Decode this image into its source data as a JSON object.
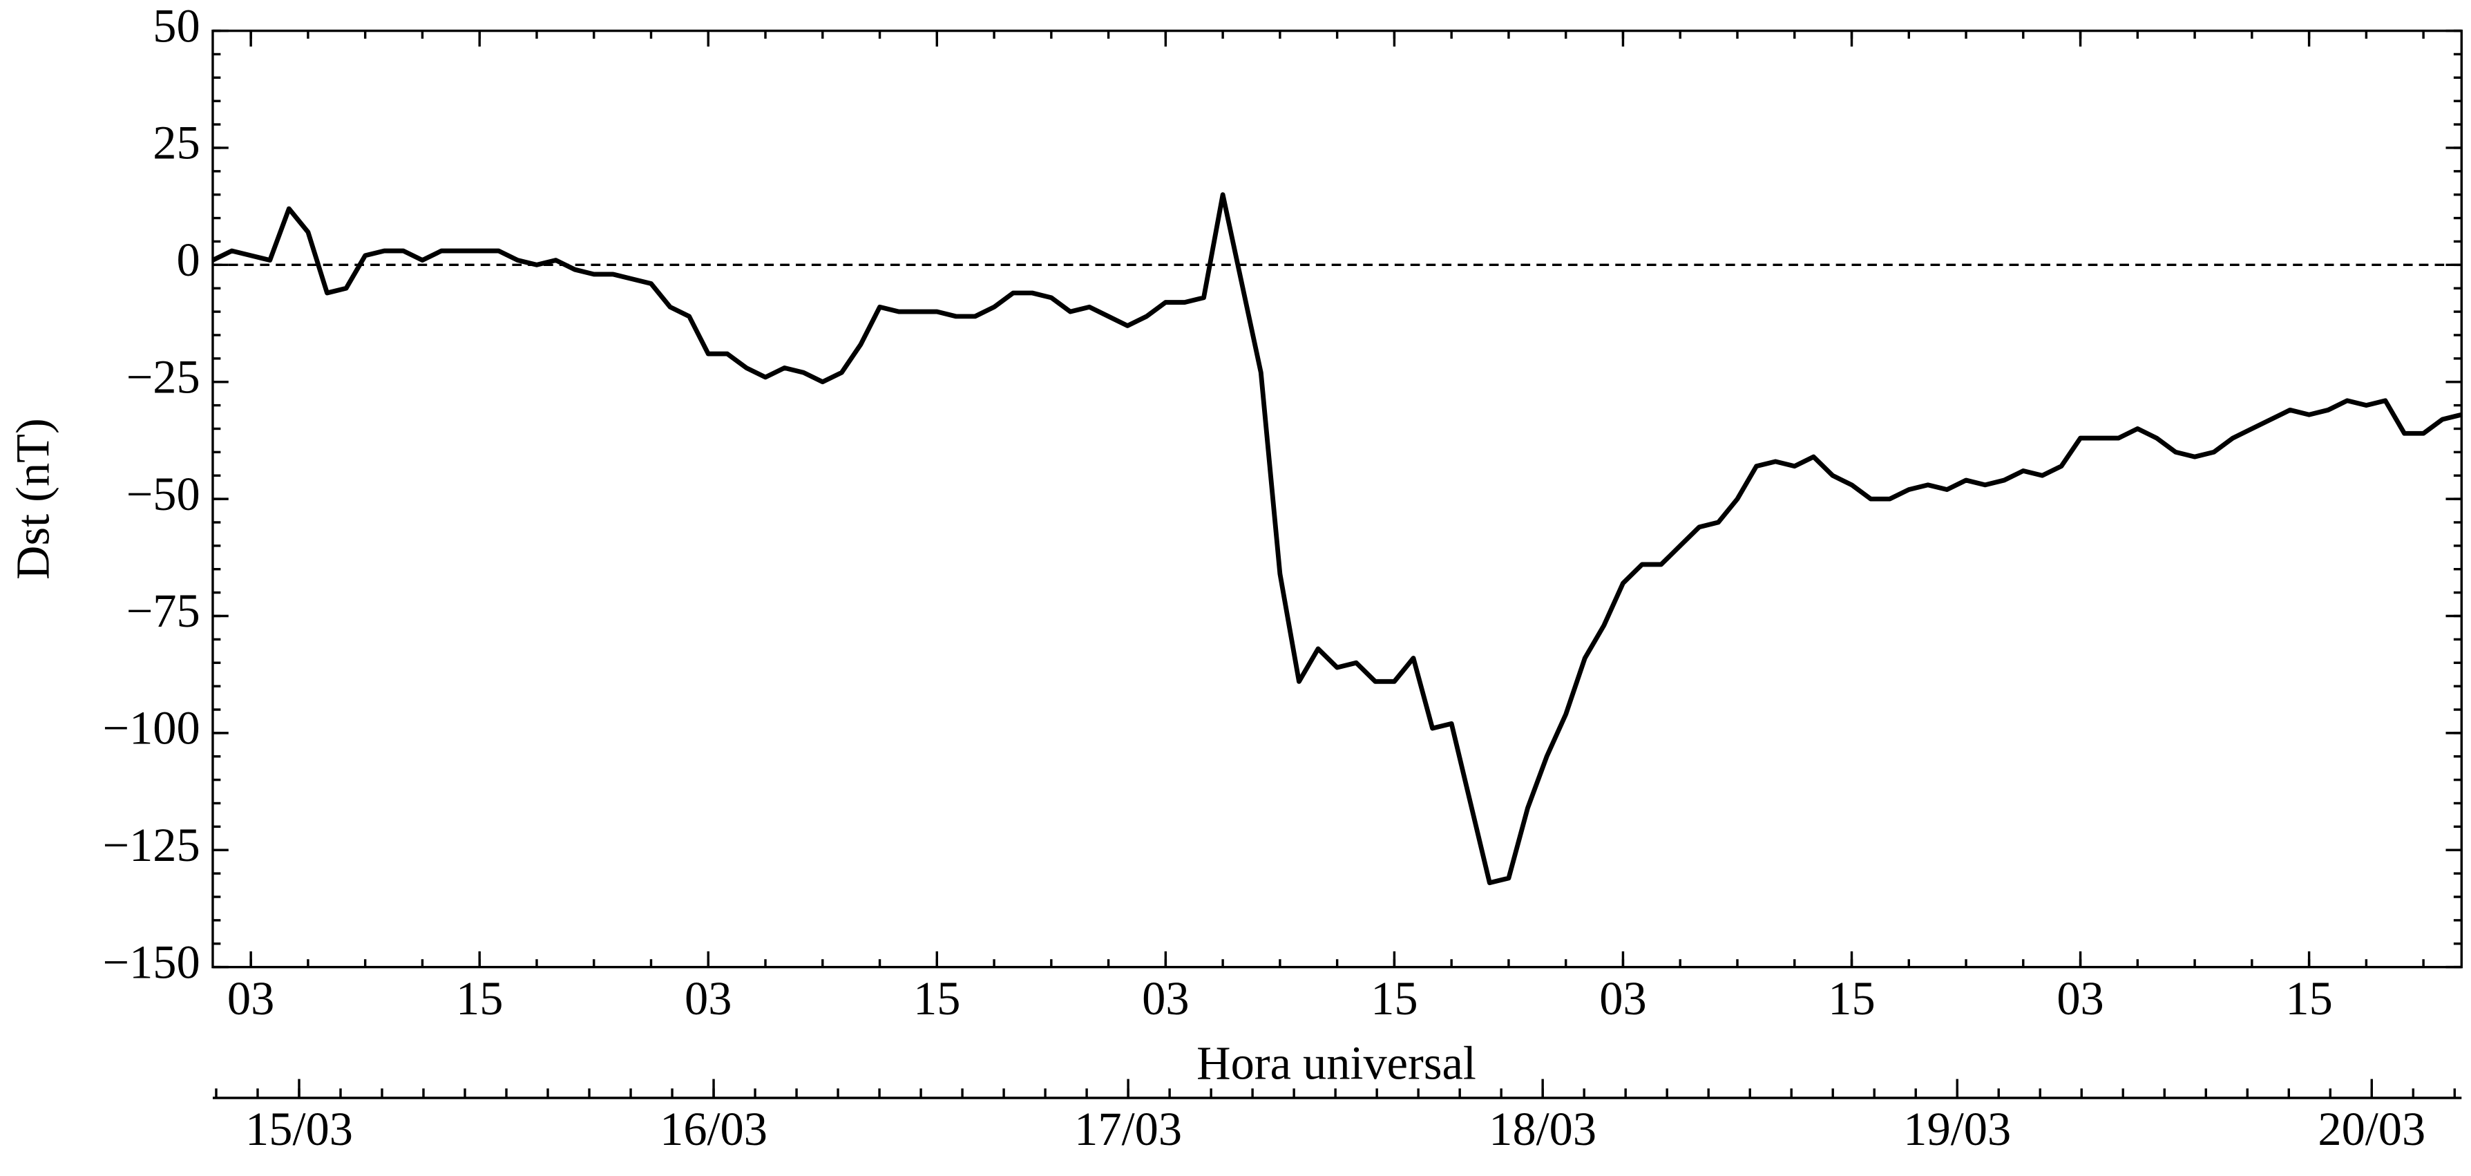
{
  "chart_data": {
    "type": "line",
    "xlabel": "Hora universal",
    "ylabel": "Dst (nT)",
    "x": [
      1,
      2,
      3,
      4,
      5,
      6,
      7,
      8,
      9,
      10,
      11,
      12,
      13,
      14,
      15,
      16,
      17,
      18,
      19,
      20,
      21,
      22,
      23,
      24,
      25,
      26,
      27,
      28,
      29,
      30,
      31,
      32,
      33,
      34,
      35,
      36,
      37,
      38,
      39,
      40,
      41,
      42,
      43,
      44,
      45,
      46,
      47,
      48,
      49,
      50,
      51,
      52,
      53,
      54,
      55,
      56,
      57,
      58,
      59,
      60,
      61,
      62,
      63,
      64,
      65,
      66,
      67,
      68,
      69,
      70,
      71,
      72,
      73,
      74,
      75,
      76,
      77,
      78,
      79,
      80,
      81,
      82,
      83,
      84,
      85,
      86,
      87,
      88,
      89,
      90,
      91,
      92,
      93,
      94,
      95,
      96,
      97,
      98,
      99,
      100,
      101,
      102,
      103,
      104,
      105,
      106,
      107,
      108,
      109,
      110,
      111,
      112,
      113,
      114,
      115,
      116,
      117,
      118,
      119
    ],
    "values": [
      1,
      3,
      2,
      1,
      12,
      7,
      -6,
      -5,
      2,
      3,
      3,
      1,
      3,
      3,
      3,
      3,
      1,
      0,
      1,
      -1,
      -2,
      -2,
      -3,
      -4,
      -9,
      -11,
      -19,
      -19,
      -22,
      -24,
      -22,
      -23,
      -25,
      -23,
      -17,
      -9,
      -10,
      -10,
      -10,
      -11,
      -11,
      -9,
      -6,
      -6,
      -7,
      -10,
      -9,
      -11,
      -13,
      -11,
      -8,
      -8,
      -7,
      15,
      -4,
      -23,
      -66,
      -89,
      -82,
      -86,
      -85,
      -89,
      -89,
      -84,
      -99,
      -98,
      -115,
      -132,
      -131,
      -116,
      -105,
      -96,
      -84,
      -77,
      -68,
      -64,
      -64,
      -60,
      -56,
      -55,
      -50,
      -43,
      -42,
      -43,
      -41,
      -45,
      -47,
      -50,
      -50,
      -48,
      -47,
      -48,
      -46,
      -47,
      -46,
      -44,
      -45,
      -43,
      -37,
      -37,
      -37,
      -35,
      -37,
      -40,
      -41,
      -40,
      -37,
      -35,
      -33,
      -31,
      -32,
      -31,
      -29,
      -30,
      -29,
      -36,
      -36,
      -33,
      -32
    ],
    "color": "#000000",
    "xlim": [
      1,
      119
    ],
    "xticks": [
      {
        "value": 3,
        "label": "03"
      },
      {
        "value": 15,
        "label": "15"
      },
      {
        "value": 27,
        "label": "03"
      },
      {
        "value": 39,
        "label": "15"
      },
      {
        "value": 51,
        "label": "03"
      },
      {
        "value": 63,
        "label": "15"
      },
      {
        "value": 75,
        "label": "03"
      },
      {
        "value": 87,
        "label": "15"
      },
      {
        "value": 99,
        "label": "03"
      },
      {
        "value": 111,
        "label": "15"
      }
    ],
    "xminor_step": 3,
    "x2lim": [
      -5,
      125.2
    ],
    "x2ticks": [
      {
        "value": 0,
        "label": "15/03"
      },
      {
        "value": 24,
        "label": "16/03"
      },
      {
        "value": 48,
        "label": "17/03"
      },
      {
        "value": 72,
        "label": "18/03"
      },
      {
        "value": 96,
        "label": "19/03"
      },
      {
        "value": 120,
        "label": "20/03"
      }
    ],
    "x2minor_step": 2.4,
    "ylim": [
      -150,
      50
    ],
    "yticks": [
      50,
      25,
      0,
      {
        "value": -25,
        "label": "−25"
      },
      {
        "value": -50,
        "label": "−50"
      },
      {
        "value": -75,
        "label": "−75"
      },
      {
        "value": -100,
        "label": "−100"
      },
      {
        "value": -125,
        "label": "−125"
      },
      {
        "value": -150,
        "label": "−150"
      }
    ],
    "yminor_step": 5,
    "zero_line": true
  }
}
